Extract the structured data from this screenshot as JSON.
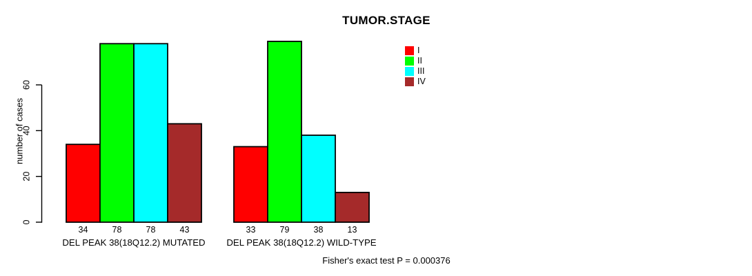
{
  "chart_data": {
    "type": "bar",
    "title": "TUMOR.STAGE",
    "ylabel": "number of cases",
    "yticks": [
      0,
      20,
      40,
      60
    ],
    "ylim": [
      0,
      60
    ],
    "grid": false,
    "legend_position": "top-right",
    "series": [
      "I",
      "II",
      "III",
      "IV"
    ],
    "colors": [
      "#ff0000",
      "#00ff00",
      "#00ffff",
      "#a52a2a"
    ],
    "groups": [
      {
        "label": "DEL PEAK 38(18Q12.2) MUTATED",
        "values": [
          34,
          78,
          78,
          43
        ]
      },
      {
        "label": "DEL PEAK 38(18Q12.2) WILD-TYPE",
        "values": [
          33,
          79,
          38,
          13
        ]
      }
    ],
    "footnote": "Fisher's exact test P = 0.000376"
  }
}
